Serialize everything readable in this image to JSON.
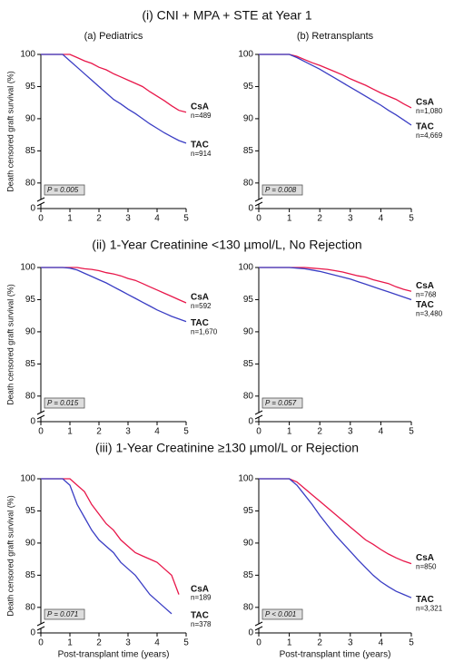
{
  "sections": [
    "(i) CNI + MPA + STE at Year 1",
    "(ii) 1-Year Creatinine <130 µmol/L, No Rejection",
    "(iii) 1-Year Creatinine ≥130 µmol/L or Rejection"
  ],
  "chart_data": [
    {
      "type": "line",
      "title": "(a) Pediatrics",
      "ylabel": "Death censored graft survival (%)",
      "annotation": "P = 0.005",
      "x": [
        0,
        0.25,
        0.5,
        0.75,
        1,
        1.25,
        1.5,
        1.75,
        2,
        2.25,
        2.5,
        2.75,
        3,
        3.25,
        3.5,
        3.75,
        4,
        4.25,
        4.5,
        4.75,
        5
      ],
      "series": [
        {
          "name": "CsA",
          "n": "n=489",
          "color": "#e8174a",
          "values": [
            100,
            100,
            100,
            100,
            100,
            99.5,
            99,
            98.6,
            98,
            97.6,
            97,
            96.5,
            96,
            95.5,
            95,
            94.2,
            93.5,
            92.8,
            92,
            91.3,
            91
          ]
        },
        {
          "name": "TAC",
          "n": "n=914",
          "color": "#3a3dc4",
          "values": [
            100,
            100,
            100,
            100,
            99,
            98,
            97,
            96,
            95,
            94,
            93,
            92.3,
            91.5,
            90.8,
            90,
            89.2,
            88.5,
            87.8,
            87.2,
            86.6,
            86.2
          ]
        }
      ],
      "xlim": [
        0,
        5
      ],
      "xticks": [
        0,
        1,
        2,
        3,
        4,
        5
      ],
      "ylim": [
        78,
        100
      ],
      "yticks": [
        0,
        80,
        85,
        90,
        95,
        100
      ],
      "axis_break": true
    },
    {
      "type": "line",
      "title": "(b) Retransplants",
      "annotation": "P = 0.008",
      "x": [
        0,
        0.25,
        0.5,
        0.75,
        1,
        1.25,
        1.5,
        1.75,
        2,
        2.25,
        2.5,
        2.75,
        3,
        3.25,
        3.5,
        3.75,
        4,
        4.25,
        4.5,
        4.75,
        5
      ],
      "series": [
        {
          "name": "CsA",
          "n": "n=1,080",
          "color": "#e8174a",
          "values": [
            100,
            100,
            100,
            100,
            100,
            99.7,
            99.2,
            98.7,
            98.3,
            97.8,
            97.3,
            96.8,
            96.2,
            95.7,
            95.2,
            94.6,
            94,
            93.5,
            93,
            92.3,
            91.7
          ]
        },
        {
          "name": "TAC",
          "n": "n=4,669",
          "color": "#3a3dc4",
          "values": [
            100,
            100,
            100,
            100,
            100,
            99.5,
            98.9,
            98.3,
            97.7,
            97,
            96.3,
            95.6,
            94.9,
            94.2,
            93.5,
            92.8,
            92.1,
            91.3,
            90.6,
            89.8,
            89
          ]
        }
      ],
      "xlim": [
        0,
        5
      ],
      "xticks": [
        0,
        1,
        2,
        3,
        4,
        5
      ],
      "ylim": [
        78,
        100
      ],
      "yticks": [
        0,
        80,
        85,
        90,
        95,
        100
      ],
      "axis_break": true
    },
    {
      "type": "line",
      "ylabel": "Death censored graft survival (%)",
      "annotation": "P = 0.015",
      "x": [
        0,
        0.25,
        0.5,
        0.75,
        1,
        1.25,
        1.5,
        1.75,
        2,
        2.25,
        2.5,
        2.75,
        3,
        3.25,
        3.5,
        3.75,
        4,
        4.25,
        4.5,
        4.75,
        5
      ],
      "series": [
        {
          "name": "CsA",
          "n": "n=592",
          "color": "#e8174a",
          "values": [
            100,
            100,
            100,
            100,
            100,
            100,
            99.8,
            99.7,
            99.5,
            99.2,
            99,
            98.7,
            98.3,
            98,
            97.5,
            97,
            96.5,
            96,
            95.5,
            95,
            94.5
          ]
        },
        {
          "name": "TAC",
          "n": "n=1,670",
          "color": "#3a3dc4",
          "values": [
            100,
            100,
            100,
            100,
            99.9,
            99.6,
            99.1,
            98.6,
            98.1,
            97.6,
            97,
            96.4,
            95.8,
            95.2,
            94.6,
            94,
            93.4,
            92.9,
            92.4,
            92,
            91.6
          ]
        }
      ],
      "xlim": [
        0,
        5
      ],
      "xticks": [
        0,
        1,
        2,
        3,
        4,
        5
      ],
      "ylim": [
        78,
        100
      ],
      "yticks": [
        0,
        80,
        85,
        90,
        95,
        100
      ],
      "axis_break": true
    },
    {
      "type": "line",
      "annotation": "P = 0.057",
      "x": [
        0,
        0.25,
        0.5,
        0.75,
        1,
        1.25,
        1.5,
        1.75,
        2,
        2.25,
        2.5,
        2.75,
        3,
        3.25,
        3.5,
        3.75,
        4,
        4.25,
        4.5,
        4.75,
        5
      ],
      "series": [
        {
          "name": "CsA",
          "n": "n=768",
          "color": "#e8174a",
          "values": [
            100,
            100,
            100,
            100,
            100,
            100,
            100,
            99.9,
            99.8,
            99.7,
            99.5,
            99.3,
            99,
            98.7,
            98.5,
            98.1,
            97.8,
            97.5,
            97,
            96.6,
            96.3
          ]
        },
        {
          "name": "TAC",
          "n": "n=3,480",
          "color": "#3a3dc4",
          "values": [
            100,
            100,
            100,
            100,
            100,
            99.9,
            99.8,
            99.6,
            99.4,
            99.1,
            98.8,
            98.5,
            98.2,
            97.8,
            97.4,
            97,
            96.6,
            96.2,
            95.8,
            95.4,
            95
          ]
        }
      ],
      "xlim": [
        0,
        5
      ],
      "xticks": [
        0,
        1,
        2,
        3,
        4,
        5
      ],
      "ylim": [
        78,
        100
      ],
      "yticks": [
        0,
        80,
        85,
        90,
        95,
        100
      ],
      "axis_break": true
    },
    {
      "type": "line",
      "ylabel": "Death censored graft survival (%)",
      "xlabel": "Post-transplant time (years)",
      "annotation": "P = 0.071",
      "x": [
        0,
        0.25,
        0.5,
        0.75,
        1,
        1.25,
        1.5,
        1.75,
        2,
        2.25,
        2.5,
        2.75,
        3,
        3.25,
        3.5,
        3.75,
        4,
        4.25,
        4.5,
        4.75,
        5
      ],
      "series": [
        {
          "name": "CsA",
          "n": "n=189",
          "color": "#e8174a",
          "values": [
            100,
            100,
            100,
            100,
            100,
            99,
            98,
            96,
            94.5,
            93,
            92,
            90.5,
            89.5,
            88.5,
            88,
            87.5,
            87,
            86,
            85,
            82,
            null
          ]
        },
        {
          "name": "TAC",
          "n": "n=378",
          "color": "#3a3dc4",
          "values": [
            100,
            100,
            100,
            100,
            99,
            96,
            94,
            92,
            90.5,
            89.5,
            88.5,
            87,
            86,
            85,
            83.5,
            82,
            81,
            80,
            79,
            null,
            null
          ]
        }
      ],
      "xlim": [
        0,
        5
      ],
      "xticks": [
        0,
        1,
        2,
        3,
        4,
        5
      ],
      "ylim": [
        78,
        100
      ],
      "yticks": [
        0,
        80,
        85,
        90,
        95,
        100
      ],
      "axis_break": true
    },
    {
      "type": "line",
      "xlabel": "Post-transplant time (years)",
      "annotation": "P < 0.001",
      "x": [
        0,
        0.25,
        0.5,
        0.75,
        1,
        1.25,
        1.5,
        1.75,
        2,
        2.25,
        2.5,
        2.75,
        3,
        3.25,
        3.5,
        3.75,
        4,
        4.25,
        4.5,
        4.75,
        5
      ],
      "series": [
        {
          "name": "CsA",
          "n": "n=850",
          "color": "#e8174a",
          "values": [
            100,
            100,
            100,
            100,
            100,
            99.5,
            98.5,
            97.5,
            96.5,
            95.5,
            94.5,
            93.5,
            92.5,
            91.5,
            90.5,
            89.8,
            89,
            88.3,
            87.7,
            87.2,
            86.8
          ]
        },
        {
          "name": "TAC",
          "n": "n=3,321",
          "color": "#3a3dc4",
          "values": [
            100,
            100,
            100,
            100,
            100,
            99,
            97.5,
            96,
            94.3,
            92.8,
            91.3,
            90,
            88.7,
            87.4,
            86.2,
            85,
            84,
            83.2,
            82.5,
            82,
            81.5
          ]
        }
      ],
      "xlim": [
        0,
        5
      ],
      "xticks": [
        0,
        1,
        2,
        3,
        4,
        5
      ],
      "ylim": [
        78,
        100
      ],
      "yticks": [
        0,
        80,
        85,
        90,
        95,
        100
      ],
      "axis_break": true
    }
  ]
}
